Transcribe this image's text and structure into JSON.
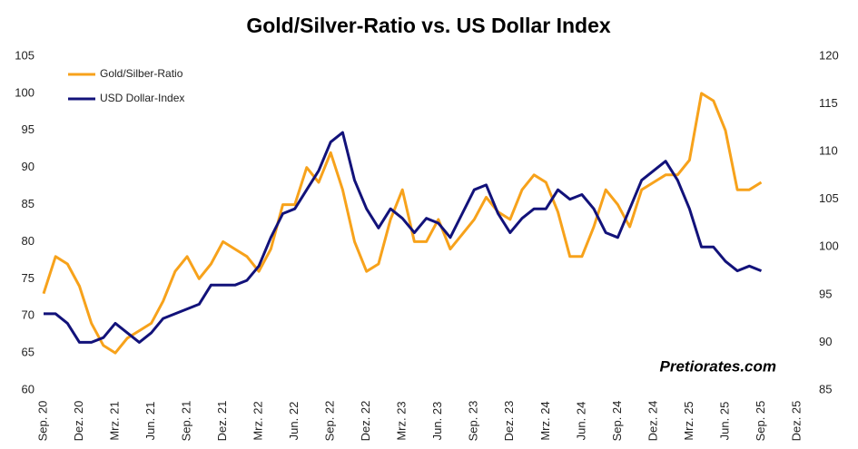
{
  "chart_data": {
    "type": "line",
    "title": "Gold/Silver-Ratio vs. US Dollar Index",
    "watermark": "Pretiorates.com",
    "categories": [
      "Sep. 20",
      null,
      null,
      "Dez. 20",
      null,
      null,
      "Mrz. 21",
      null,
      null,
      "Jun. 21",
      null,
      null,
      "Sep. 21",
      null,
      null,
      "Dez. 21",
      null,
      null,
      "Mrz. 22",
      null,
      null,
      "Jun. 22",
      null,
      null,
      "Sep. 22",
      null,
      null,
      "Dez. 22",
      null,
      null,
      "Mrz. 23",
      null,
      null,
      "Jun. 23",
      null,
      null,
      "Sep. 23",
      null,
      null,
      "Dez. 23",
      null,
      null,
      "Mrz. 24",
      null,
      null,
      "Jun. 24",
      null,
      null,
      "Sep. 24",
      null,
      null,
      "Dez. 24",
      null,
      null,
      "Mrz. 25",
      null,
      null,
      "Jun. 25",
      null,
      null,
      "Sep. 25",
      null,
      null,
      "Dez. 25"
    ],
    "series": [
      {
        "name": "Gold/Silber-Ratio",
        "color": "#f7a21b",
        "axis": "y",
        "values": [
          73,
          78,
          77,
          74,
          69,
          66,
          65,
          67,
          68,
          69,
          72,
          76,
          78,
          75,
          77,
          80,
          79,
          78,
          76,
          79,
          85,
          85,
          90,
          88,
          92,
          87,
          80,
          76,
          77,
          83,
          87,
          80,
          80,
          83,
          79,
          81,
          83,
          86,
          84,
          83,
          87,
          89,
          88,
          84,
          78,
          78,
          82,
          87,
          85,
          82,
          87,
          88,
          89,
          89,
          91,
          100,
          99,
          95,
          87,
          87,
          88,
          null,
          null,
          null
        ]
      },
      {
        "name": "USD Dollar-Index",
        "color": "#12127a",
        "axis": "y2",
        "values": [
          93,
          93,
          92,
          90,
          90,
          90.5,
          92,
          91,
          90,
          91,
          92.5,
          93,
          93.5,
          94,
          96,
          96,
          96,
          96.5,
          98,
          101,
          103.5,
          104,
          106,
          108,
          111,
          112,
          107,
          104,
          102,
          104,
          103,
          101.5,
          103,
          102.5,
          101,
          103.5,
          106,
          106.5,
          103.5,
          101.5,
          103,
          104,
          104,
          106,
          105,
          105.5,
          104,
          101.5,
          101,
          104,
          107,
          108,
          109,
          107,
          104,
          100,
          100,
          98.5,
          97.5,
          98,
          97.5,
          null,
          null,
          null
        ]
      }
    ],
    "ylim": [
      60,
      105
    ],
    "yticks": [
      60,
      65,
      70,
      75,
      80,
      85,
      90,
      95,
      100,
      105
    ],
    "y2lim": [
      85,
      120
    ],
    "y2ticks": [
      85,
      90,
      95,
      100,
      105,
      110,
      115,
      120
    ],
    "legend": "top-left"
  }
}
